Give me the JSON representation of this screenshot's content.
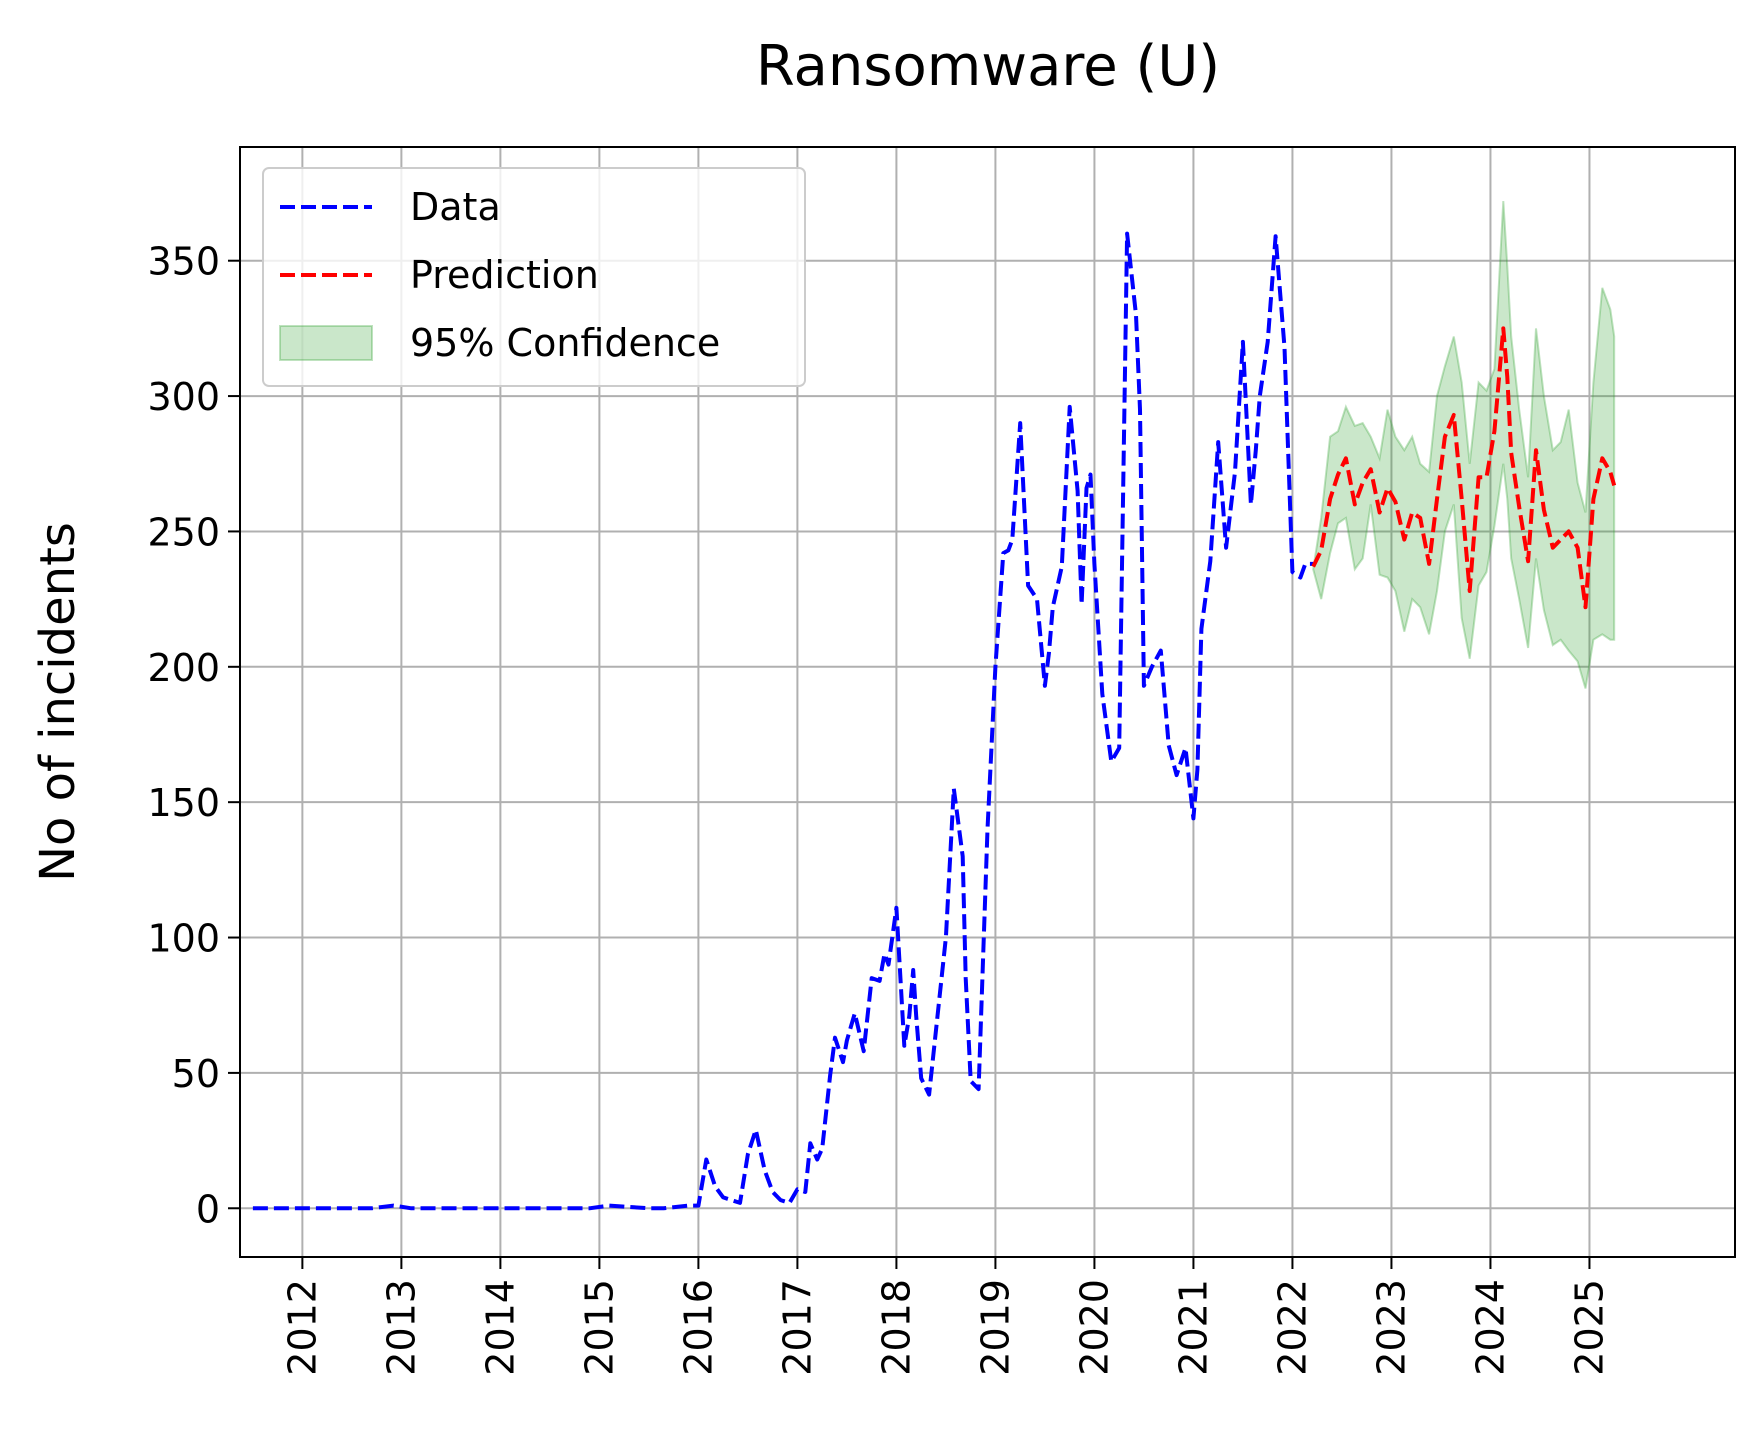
{
  "chart_data": {
    "type": "line",
    "title": "Ransomware (U)",
    "xlabel": "",
    "ylabel": "No of incidents",
    "xlim": [
      2011.37,
      2026.47
    ],
    "ylim": [
      -18,
      392
    ],
    "grid": true,
    "legend_position": "top-left",
    "x_ticks": [
      "2012",
      "2013",
      "2014",
      "2015",
      "2016",
      "2017",
      "2018",
      "2019",
      "2020",
      "2021",
      "2022",
      "2023",
      "2024",
      "2025"
    ],
    "y_ticks": [
      "0",
      "50",
      "100",
      "150",
      "200",
      "250",
      "300",
      "350"
    ],
    "series": [
      {
        "name": "Data",
        "color": "#0000ff",
        "style": "dashed",
        "x": [
          2011.5,
          2011.9,
          2012.3,
          2012.7,
          2012.92,
          2013.1,
          2013.5,
          2013.9,
          2014.3,
          2014.7,
          2014.9,
          2015.1,
          2015.5,
          2015.65,
          2015.9,
          2016.0,
          2016.08,
          2016.17,
          2016.25,
          2016.42,
          2016.5,
          2016.58,
          2016.67,
          2016.75,
          2016.83,
          2016.92,
          2017.0,
          2017.08,
          2017.13,
          2017.2,
          2017.25,
          2017.33,
          2017.38,
          2017.46,
          2017.5,
          2017.58,
          2017.67,
          2017.75,
          2017.83,
          2017.88,
          2017.92,
          2018.0,
          2018.08,
          2018.13,
          2018.17,
          2018.2,
          2018.25,
          2018.33,
          2018.5,
          2018.58,
          2018.67,
          2018.7,
          2018.75,
          2018.83,
          2018.92,
          2019.0,
          2019.08,
          2019.13,
          2019.17,
          2019.25,
          2019.33,
          2019.42,
          2019.5,
          2019.54,
          2019.58,
          2019.67,
          2019.75,
          2019.83,
          2019.87,
          2019.92,
          2019.96,
          2020.0,
          2020.08,
          2020.17,
          2020.25,
          2020.33,
          2020.42,
          2020.46,
          2020.5,
          2020.58,
          2020.67,
          2020.75,
          2020.83,
          2020.92,
          2021.0,
          2021.04,
          2021.08,
          2021.17,
          2021.25,
          2021.33,
          2021.42,
          2021.5,
          2021.58,
          2021.63,
          2021.67,
          2021.75,
          2021.83,
          2021.92,
          2022.0,
          2022.08,
          2022.13,
          2022.21
        ],
        "y": [
          0,
          0,
          0,
          0,
          1,
          0,
          0,
          0,
          0,
          0,
          0,
          1,
          0,
          0,
          1,
          1,
          18,
          8,
          4,
          2,
          20,
          29,
          14,
          6,
          3,
          2,
          7,
          6,
          24,
          18,
          22,
          49,
          63,
          54,
          62,
          72,
          58,
          85,
          84,
          94,
          90,
          111,
          60,
          71,
          88,
          71,
          48,
          42,
          100,
          155,
          130,
          85,
          47,
          44,
          140,
          200,
          242,
          243,
          247,
          290,
          230,
          225,
          193,
          205,
          222,
          237,
          296,
          265,
          223,
          266,
          271,
          238,
          190,
          165,
          170,
          360,
          330,
          295,
          193,
          200,
          206,
          171,
          160,
          170,
          144,
          162,
          214,
          239,
          283,
          244,
          272,
          320,
          260,
          280,
          300,
          320,
          359,
          318,
          235,
          233,
          238,
          238
        ],
        "y_note": ""
      },
      {
        "name": "Prediction",
        "color": "#ff0000",
        "style": "dashed",
        "x": [
          2022.21,
          2022.29,
          2022.38,
          2022.46,
          2022.54,
          2022.63,
          2022.71,
          2022.79,
          2022.88,
          2022.96,
          2023.04,
          2023.13,
          2023.21,
          2023.29,
          2023.38,
          2023.46,
          2023.54,
          2023.63,
          2023.71,
          2023.79,
          2023.88,
          2023.96,
          2024.04,
          2024.13,
          2024.17,
          2024.21,
          2024.29,
          2024.38,
          2024.46,
          2024.54,
          2024.63,
          2024.71,
          2024.79,
          2024.88,
          2024.96,
          2025.04,
          2025.13,
          2025.21,
          2025.25
        ],
        "y": [
          237,
          243,
          262,
          271,
          277,
          260,
          268,
          273,
          257,
          266,
          261,
          247,
          257,
          255,
          238,
          262,
          285,
          293,
          262,
          228,
          270,
          270,
          287,
          325,
          307,
          279,
          259,
          239,
          280,
          258,
          244,
          247,
          250,
          244,
          222,
          262,
          277,
          272,
          267
        ],
        "y_note": ""
      },
      {
        "name": "95% Confidence",
        "color": "#2ca02c",
        "style": "band",
        "x": [
          2022.21,
          2022.29,
          2022.38,
          2022.46,
          2022.54,
          2022.63,
          2022.71,
          2022.79,
          2022.88,
          2022.96,
          2023.04,
          2023.13,
          2023.21,
          2023.29,
          2023.38,
          2023.46,
          2023.54,
          2023.63,
          2023.71,
          2023.79,
          2023.88,
          2023.96,
          2024.04,
          2024.13,
          2024.17,
          2024.21,
          2024.29,
          2024.38,
          2024.46,
          2024.54,
          2024.63,
          2024.71,
          2024.79,
          2024.88,
          2024.96,
          2025.04,
          2025.13,
          2025.21,
          2025.25
        ],
        "upper": [
          236,
          255,
          285,
          287,
          296,
          289,
          290,
          285,
          277,
          295,
          285,
          280,
          285,
          275,
          272,
          300,
          311,
          322,
          305,
          275,
          305,
          302,
          310,
          372,
          348,
          322,
          295,
          270,
          325,
          300,
          280,
          283,
          295,
          268,
          257,
          305,
          340,
          332,
          322
        ],
        "lower": [
          236,
          225,
          242,
          253,
          255,
          236,
          240,
          260,
          234,
          233,
          228,
          213,
          225,
          222,
          212,
          228,
          250,
          260,
          218,
          203,
          230,
          235,
          252,
          275,
          262,
          240,
          225,
          207,
          240,
          221,
          208,
          210,
          206,
          202,
          192,
          210,
          212,
          210,
          210
        ]
      }
    ]
  }
}
